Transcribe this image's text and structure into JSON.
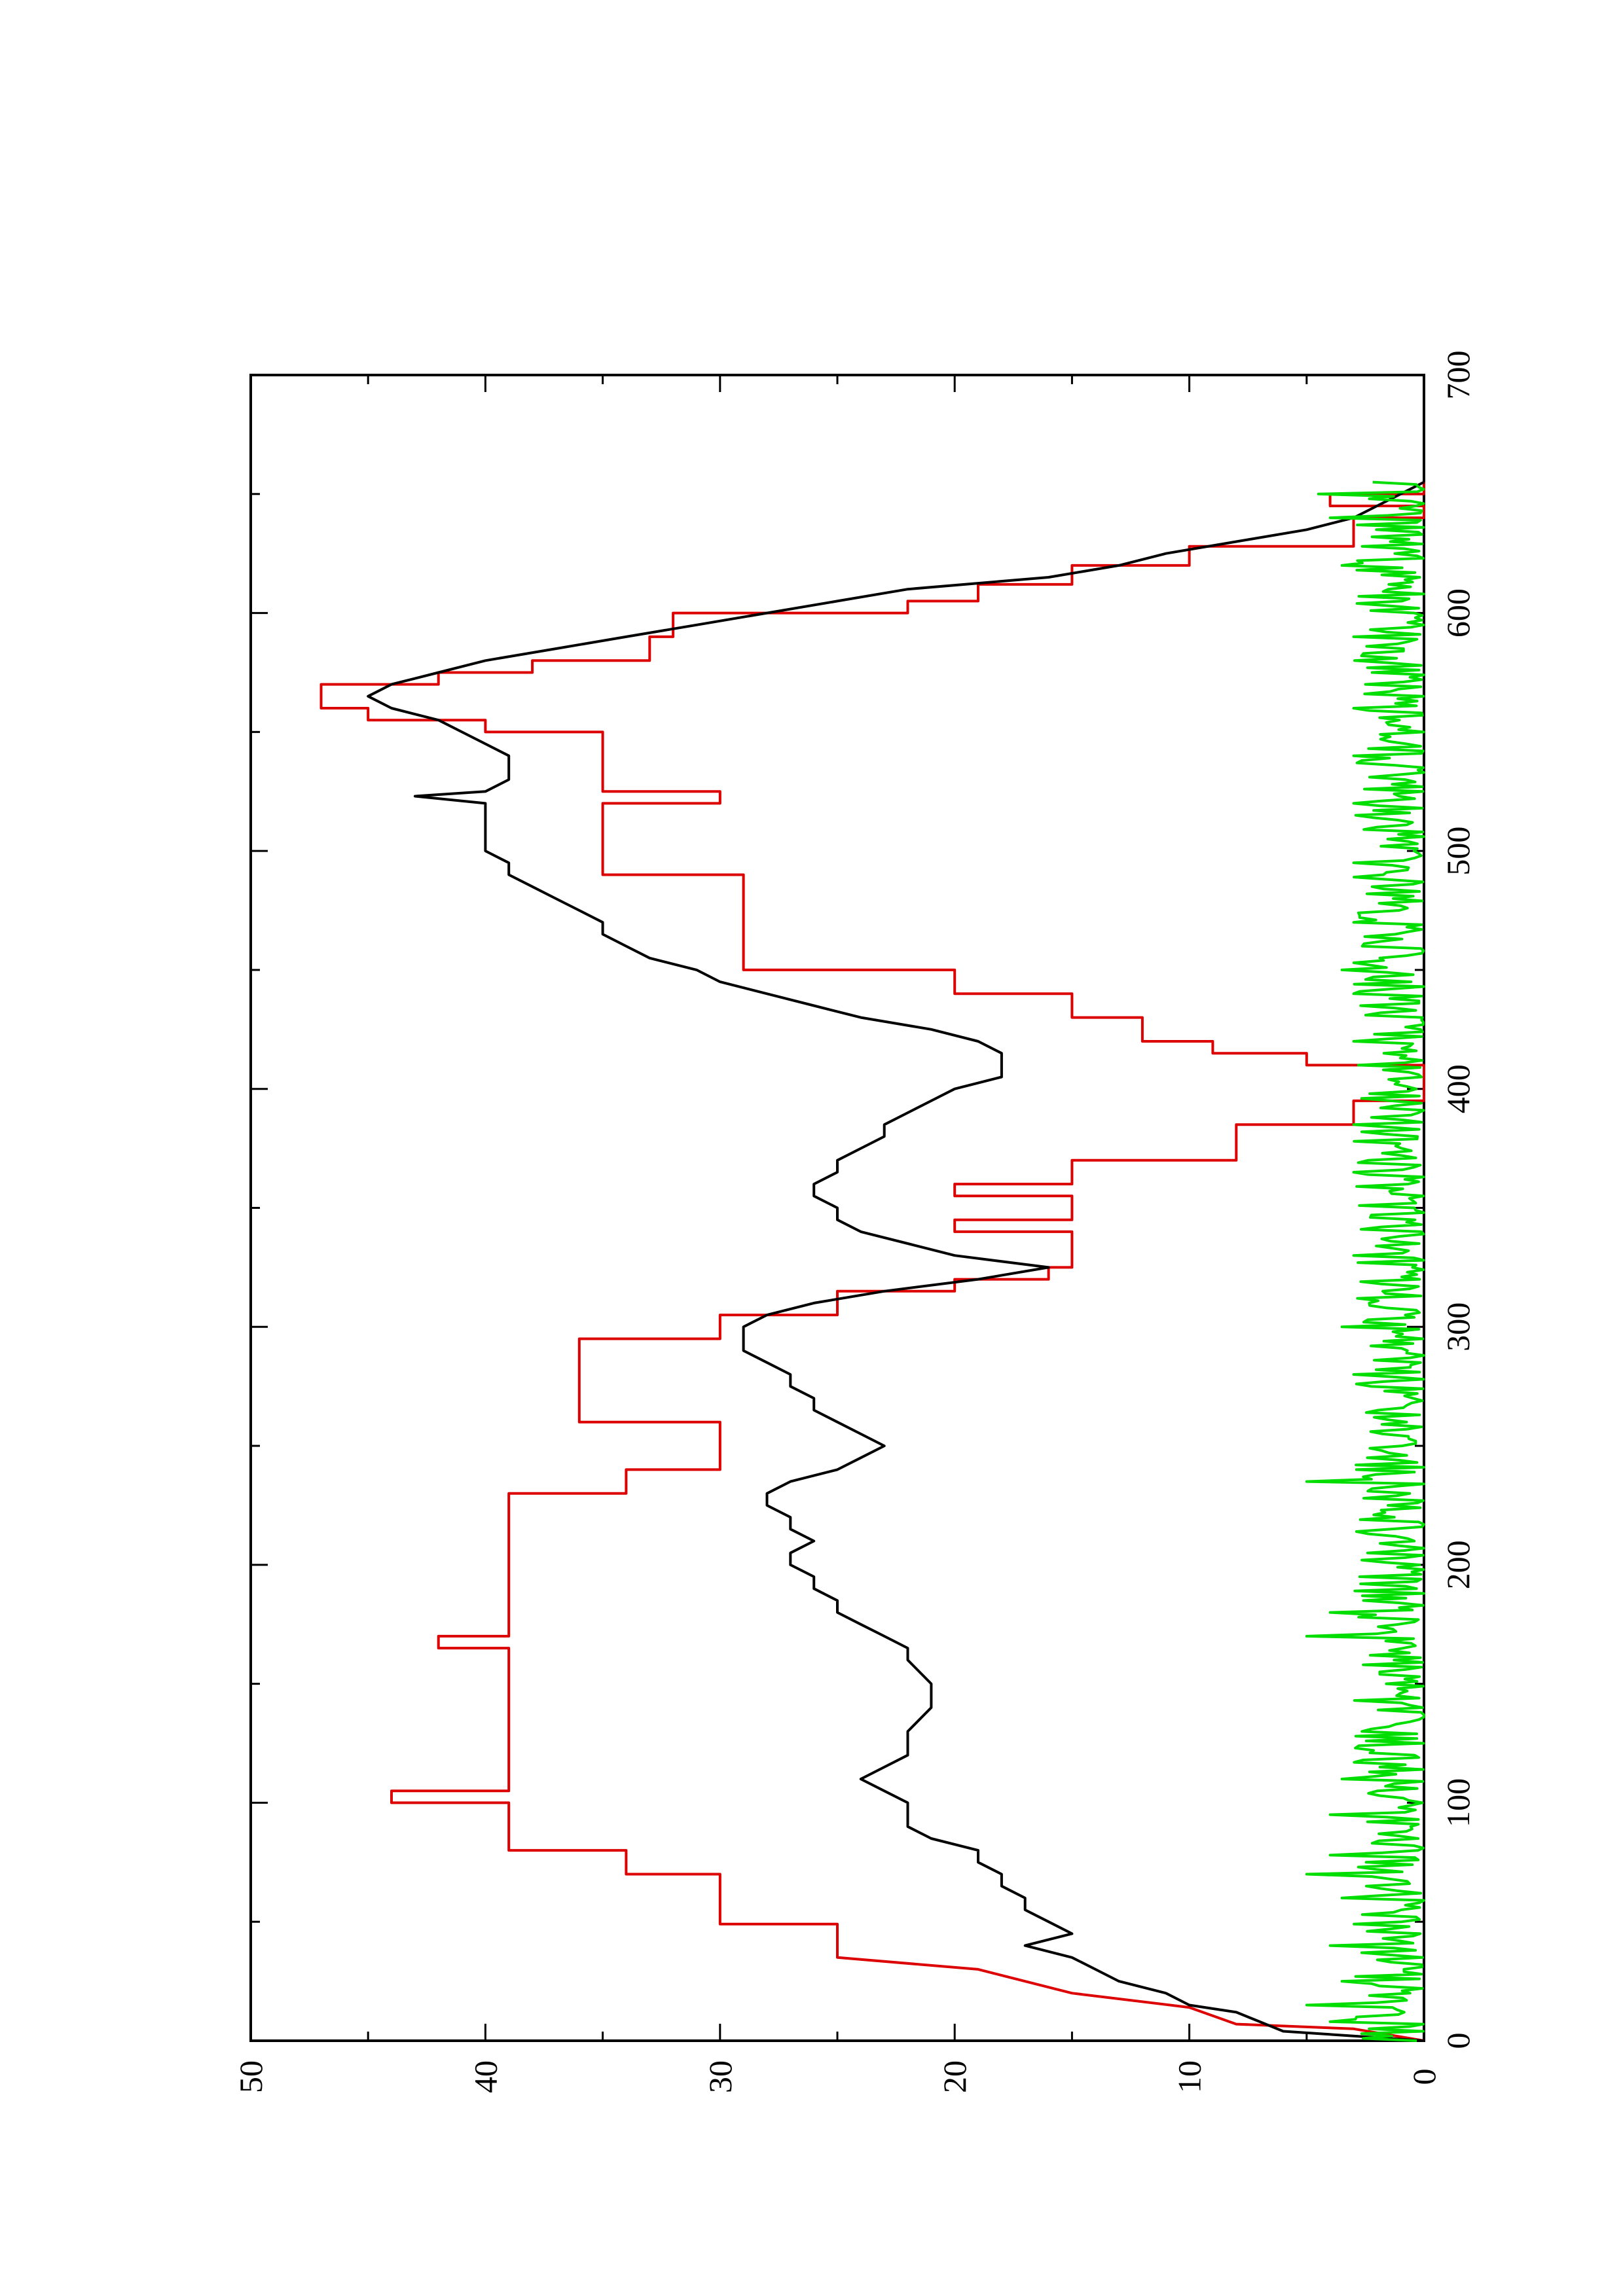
{
  "chart_data": {
    "type": "line",
    "orientation": "rotated-90-ccw",
    "xlim": [
      0,
      700
    ],
    "ylim": [
      0,
      50
    ],
    "x_major_ticks": [
      0,
      100,
      200,
      300,
      400,
      500,
      600,
      700
    ],
    "x_minor_ticks": [
      50,
      150,
      250,
      350,
      450,
      550,
      650
    ],
    "y_major_ticks": [
      0,
      10,
      20,
      30,
      40,
      50
    ],
    "y_minor_ticks": [
      5,
      15,
      25,
      35,
      45
    ],
    "x_tick_labels": [
      "0",
      "100",
      "200",
      "300",
      "400",
      "500",
      "600",
      "700"
    ],
    "y_tick_labels": [
      "0",
      "10",
      "20",
      "30",
      "40",
      "50"
    ],
    "grid": false,
    "series": [
      {
        "color": "#dd0000",
        "step": true,
        "points": [
          [
            0,
            0
          ],
          [
            5,
            3
          ],
          [
            7,
            8
          ],
          [
            14,
            10
          ],
          [
            20,
            15
          ],
          [
            30,
            19
          ],
          [
            35,
            25
          ],
          [
            49,
            25
          ],
          [
            49,
            30
          ],
          [
            70,
            30
          ],
          [
            70,
            34
          ],
          [
            80,
            34
          ],
          [
            80,
            39
          ],
          [
            100,
            39
          ],
          [
            100,
            44
          ],
          [
            105,
            44
          ],
          [
            105,
            39
          ],
          [
            165,
            39
          ],
          [
            165,
            42
          ],
          [
            170,
            42
          ],
          [
            170,
            39
          ],
          [
            230,
            39
          ],
          [
            230,
            34
          ],
          [
            240,
            34
          ],
          [
            240,
            30
          ],
          [
            260,
            30
          ],
          [
            260,
            36
          ],
          [
            295,
            36
          ],
          [
            295,
            30
          ],
          [
            305,
            30
          ],
          [
            305,
            25
          ],
          [
            315,
            25
          ],
          [
            315,
            20
          ],
          [
            320,
            20
          ],
          [
            320,
            16
          ],
          [
            325,
            16
          ],
          [
            325,
            15
          ],
          [
            340,
            15
          ],
          [
            340,
            20
          ],
          [
            345,
            20
          ],
          [
            345,
            15
          ],
          [
            355,
            15
          ],
          [
            355,
            20
          ],
          [
            360,
            20
          ],
          [
            360,
            15
          ],
          [
            370,
            15
          ],
          [
            370,
            8
          ],
          [
            385,
            8
          ],
          [
            385,
            3
          ],
          [
            395,
            3
          ],
          [
            395,
            0
          ],
          [
            410,
            0
          ],
          [
            410,
            5
          ],
          [
            415,
            5
          ],
          [
            415,
            9
          ],
          [
            420,
            9
          ],
          [
            420,
            12
          ],
          [
            430,
            12
          ],
          [
            430,
            15
          ],
          [
            440,
            15
          ],
          [
            440,
            20
          ],
          [
            450,
            20
          ],
          [
            450,
            29
          ],
          [
            490,
            29
          ],
          [
            490,
            35
          ],
          [
            520,
            35
          ],
          [
            520,
            30
          ],
          [
            525,
            30
          ],
          [
            525,
            35
          ],
          [
            545,
            35
          ],
          [
            545,
            35
          ],
          [
            550,
            35
          ],
          [
            550,
            40
          ],
          [
            555,
            40
          ],
          [
            555,
            45
          ],
          [
            560,
            45
          ],
          [
            560,
            47
          ],
          [
            570,
            47
          ],
          [
            570,
            42
          ],
          [
            575,
            42
          ],
          [
            575,
            38
          ],
          [
            580,
            38
          ],
          [
            580,
            33
          ],
          [
            590,
            33
          ],
          [
            590,
            32
          ],
          [
            600,
            32
          ],
          [
            600,
            22
          ],
          [
            605,
            22
          ],
          [
            605,
            19
          ],
          [
            612,
            19
          ],
          [
            612,
            15
          ],
          [
            620,
            15
          ],
          [
            620,
            10
          ],
          [
            628,
            10
          ],
          [
            628,
            3
          ],
          [
            640,
            3
          ],
          [
            640,
            0
          ],
          [
            645,
            0
          ],
          [
            645,
            4
          ],
          [
            650,
            4
          ],
          [
            650,
            0
          ],
          [
            655,
            0
          ]
        ]
      },
      {
        "color": "#000000",
        "step": false,
        "points": [
          [
            0,
            0
          ],
          [
            2,
            3
          ],
          [
            4,
            6
          ],
          [
            8,
            7
          ],
          [
            12,
            8
          ],
          [
            15,
            10
          ],
          [
            20,
            11
          ],
          [
            25,
            13
          ],
          [
            30,
            14
          ],
          [
            35,
            15
          ],
          [
            40,
            17
          ],
          [
            45,
            15
          ],
          [
            50,
            16
          ],
          [
            55,
            17
          ],
          [
            60,
            17
          ],
          [
            65,
            18
          ],
          [
            70,
            18
          ],
          [
            75,
            19
          ],
          [
            80,
            19
          ],
          [
            85,
            21
          ],
          [
            90,
            22
          ],
          [
            95,
            22
          ],
          [
            100,
            22
          ],
          [
            105,
            23
          ],
          [
            110,
            24
          ],
          [
            115,
            23
          ],
          [
            120,
            22
          ],
          [
            125,
            22
          ],
          [
            130,
            22
          ],
          [
            140,
            21
          ],
          [
            150,
            21
          ],
          [
            160,
            22
          ],
          [
            165,
            22
          ],
          [
            170,
            23
          ],
          [
            175,
            24
          ],
          [
            180,
            25
          ],
          [
            185,
            25
          ],
          [
            190,
            26
          ],
          [
            195,
            26
          ],
          [
            200,
            27
          ],
          [
            205,
            27
          ],
          [
            210,
            26
          ],
          [
            215,
            27
          ],
          [
            220,
            27
          ],
          [
            225,
            28
          ],
          [
            230,
            28
          ],
          [
            235,
            27
          ],
          [
            240,
            25
          ],
          [
            245,
            24
          ],
          [
            250,
            23
          ],
          [
            255,
            24
          ],
          [
            260,
            25
          ],
          [
            265,
            26
          ],
          [
            270,
            26
          ],
          [
            275,
            27
          ],
          [
            280,
            27
          ],
          [
            285,
            28
          ],
          [
            290,
            29
          ],
          [
            295,
            29
          ],
          [
            300,
            29
          ],
          [
            305,
            28
          ],
          [
            310,
            26
          ],
          [
            315,
            23
          ],
          [
            320,
            19
          ],
          [
            325,
            16
          ],
          [
            330,
            20
          ],
          [
            335,
            22
          ],
          [
            340,
            24
          ],
          [
            345,
            25
          ],
          [
            350,
            25
          ],
          [
            355,
            26
          ],
          [
            360,
            26
          ],
          [
            365,
            25
          ],
          [
            370,
            25
          ],
          [
            375,
            24
          ],
          [
            380,
            23
          ],
          [
            385,
            23
          ],
          [
            390,
            22
          ],
          [
            395,
            21
          ],
          [
            400,
            20
          ],
          [
            405,
            18
          ],
          [
            410,
            18
          ],
          [
            415,
            18
          ],
          [
            420,
            19
          ],
          [
            425,
            21
          ],
          [
            430,
            24
          ],
          [
            435,
            26
          ],
          [
            440,
            28
          ],
          [
            445,
            30
          ],
          [
            450,
            31
          ],
          [
            455,
            33
          ],
          [
            460,
            34
          ],
          [
            465,
            35
          ],
          [
            470,
            35
          ],
          [
            475,
            36
          ],
          [
            480,
            37
          ],
          [
            485,
            38
          ],
          [
            490,
            39
          ],
          [
            495,
            39
          ],
          [
            500,
            40
          ],
          [
            510,
            40
          ],
          [
            520,
            40
          ],
          [
            523,
            43
          ],
          [
            525,
            40
          ],
          [
            530,
            39
          ],
          [
            540,
            39
          ],
          [
            545,
            40
          ],
          [
            550,
            41
          ],
          [
            555,
            42
          ],
          [
            560,
            44
          ],
          [
            565,
            45
          ],
          [
            570,
            44
          ],
          [
            575,
            42
          ],
          [
            580,
            40
          ],
          [
            585,
            37
          ],
          [
            590,
            34
          ],
          [
            595,
            31
          ],
          [
            600,
            28
          ],
          [
            605,
            25
          ],
          [
            610,
            22
          ],
          [
            615,
            16
          ],
          [
            620,
            13
          ],
          [
            625,
            11
          ],
          [
            630,
            8
          ],
          [
            635,
            5
          ],
          [
            640,
            3
          ],
          [
            645,
            2
          ],
          [
            650,
            1
          ],
          [
            655,
            0
          ]
        ]
      },
      {
        "color": "#00dd00",
        "step": false,
        "noise_seed": 7,
        "noise_range": [
          0,
          3
        ],
        "spikes": [
          [
            8,
            4
          ],
          [
            15,
            5
          ],
          [
            25,
            3.5
          ],
          [
            40,
            4
          ],
          [
            60,
            3.5
          ],
          [
            70,
            5
          ],
          [
            78,
            4
          ],
          [
            95,
            4
          ],
          [
            110,
            3.5
          ],
          [
            170,
            5
          ],
          [
            180,
            4
          ],
          [
            235,
            5
          ],
          [
            280,
            3
          ],
          [
            300,
            3.5
          ],
          [
            330,
            3
          ],
          [
            365,
            3
          ],
          [
            385,
            3
          ],
          [
            420,
            3
          ],
          [
            440,
            3
          ],
          [
            450,
            3.5
          ],
          [
            470,
            3
          ],
          [
            495,
            3
          ],
          [
            520,
            3
          ],
          [
            540,
            3
          ],
          [
            560,
            3
          ],
          [
            590,
            3
          ],
          [
            620,
            3.5
          ],
          [
            640,
            4
          ],
          [
            650,
            4.5
          ]
        ],
        "x_range": [
          0,
          655
        ]
      }
    ]
  }
}
